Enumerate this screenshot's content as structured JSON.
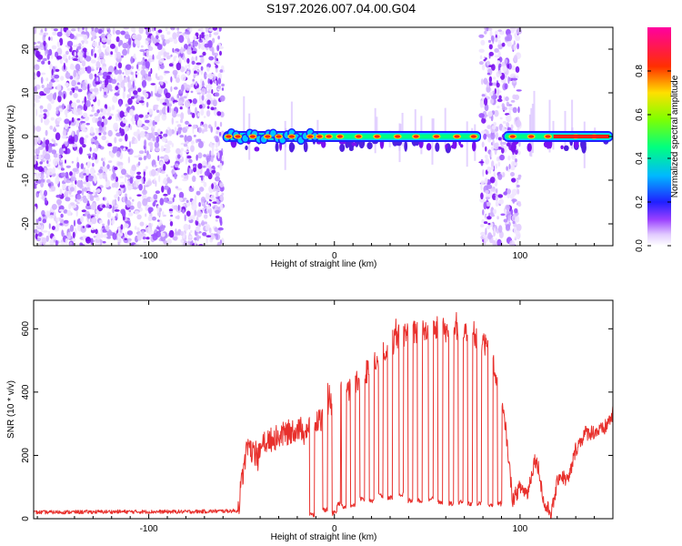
{
  "title": "S197.2026.007.04.00.G04",
  "chart_data": [
    {
      "type": "heatmap",
      "name": "spectrogram",
      "xlabel": "Height of straight line (km)",
      "ylabel": "Frequency (Hz)",
      "xlim": [
        -162,
        150
      ],
      "ylim": [
        -25,
        25
      ],
      "xticks": [
        -100,
        0,
        100
      ],
      "yticks": [
        -20,
        -10,
        0,
        10,
        20
      ],
      "colorbar": {
        "label": "Normalized spectral amplitude",
        "range": [
          0,
          1
        ],
        "ticks": [
          0.0,
          0.2,
          0.4,
          0.6,
          0.8
        ],
        "tick_labels": [
          "0.0",
          "0.2",
          "0.4",
          "0.6",
          "0.8"
        ],
        "colors": [
          "#ffffff",
          "#d4b8f5",
          "#7a00ff",
          "#1020ff",
          "#00d0ff",
          "#00ff60",
          "#c8ff00",
          "#ffc000",
          "#ff2000",
          "#ff00a0"
        ]
      },
      "noise_regions": [
        [
          -162,
          -60
        ],
        [
          79,
          100
        ]
      ],
      "signal_band": {
        "frequency_hz": 0,
        "x_range": [
          -60,
          150
        ],
        "gaps": [
          [
            79,
            91
          ]
        ],
        "peak_positions_km": [
          -57,
          -52,
          -44,
          -36,
          -30,
          -23,
          -13,
          -8,
          -3,
          3,
          13,
          23,
          34,
          44,
          55,
          66,
          75,
          96,
          106,
          115,
          130,
          140
        ]
      }
    },
    {
      "type": "line",
      "name": "snr",
      "xlabel": "Height of straight line (km)",
      "ylabel": "SNR (10 * v/v)",
      "xlim": [
        -162,
        150
      ],
      "ylim": [
        0,
        690
      ],
      "xticks": [
        -100,
        0,
        100
      ],
      "yticks": [
        0,
        200,
        400,
        600
      ],
      "color": "#e8302c",
      "anchors": [
        [
          -162,
          20
        ],
        [
          -120,
          22
        ],
        [
          -80,
          22
        ],
        [
          -52,
          25
        ],
        [
          -47,
          240
        ],
        [
          -42,
          180
        ],
        [
          -38,
          240
        ],
        [
          -30,
          260
        ],
        [
          -22,
          280
        ],
        [
          -12,
          290
        ],
        [
          -5,
          330
        ],
        [
          0,
          380
        ],
        [
          10,
          420
        ],
        [
          20,
          480
        ],
        [
          28,
          540
        ],
        [
          36,
          580
        ],
        [
          45,
          590
        ],
        [
          55,
          600
        ],
        [
          65,
          590
        ],
        [
          72,
          600
        ],
        [
          80,
          560
        ],
        [
          86,
          480
        ],
        [
          92,
          300
        ],
        [
          96,
          60
        ],
        [
          100,
          100
        ],
        [
          104,
          80
        ],
        [
          108,
          190
        ],
        [
          110,
          160
        ],
        [
          113,
          40
        ],
        [
          117,
          20
        ],
        [
          121,
          140
        ],
        [
          126,
          120
        ],
        [
          130,
          220
        ],
        [
          135,
          270
        ],
        [
          145,
          280
        ],
        [
          150,
          330
        ]
      ],
      "dropouts": [
        [
          -12,
          5
        ],
        [
          -5,
          20
        ],
        [
          0,
          10
        ],
        [
          2,
          40
        ],
        [
          5,
          30
        ],
        [
          10,
          35
        ],
        [
          15,
          55
        ],
        [
          20,
          50
        ],
        [
          25,
          65
        ],
        [
          30,
          60
        ],
        [
          36,
          70
        ],
        [
          41,
          50
        ],
        [
          46,
          50
        ],
        [
          52,
          55
        ],
        [
          57,
          45
        ],
        [
          63,
          40
        ],
        [
          68,
          45
        ],
        [
          73,
          40
        ],
        [
          78,
          40
        ],
        [
          84,
          35
        ],
        [
          89,
          40
        ]
      ]
    }
  ]
}
